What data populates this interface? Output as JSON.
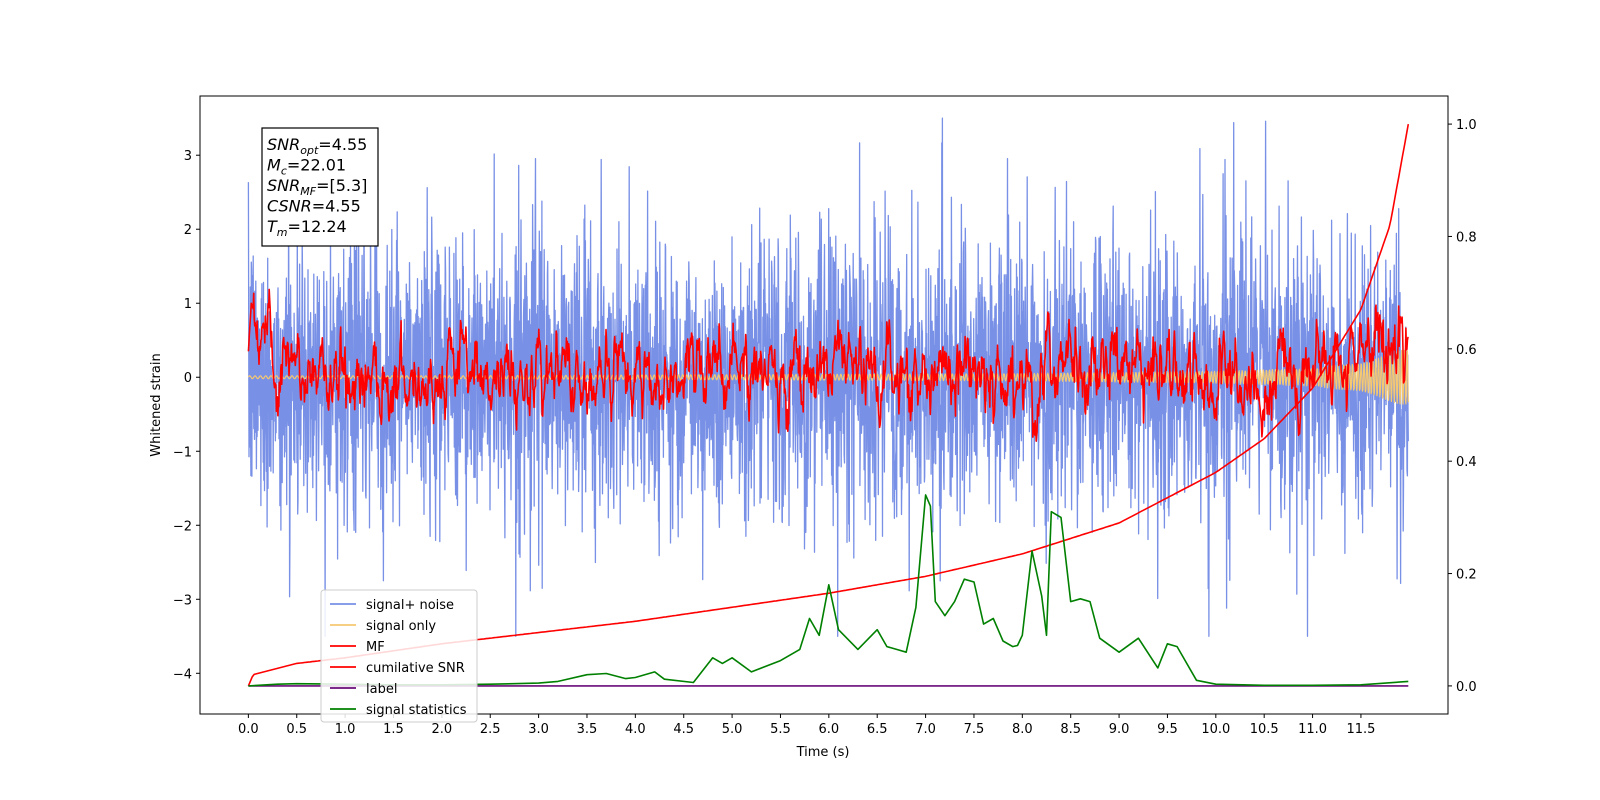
{
  "chart_data": {
    "type": "line",
    "title": "",
    "xlabel": "Time (s)",
    "ylabel": "Whitened strain",
    "xlim": [
      -0.5,
      12.4
    ],
    "ylim": [
      -4.55,
      3.8
    ],
    "y2lim": [
      -0.05,
      1.05
    ],
    "x_ticks": [
      0.0,
      0.5,
      1.0,
      1.5,
      2.0,
      2.5,
      3.0,
      3.5,
      4.0,
      4.5,
      5.0,
      5.5,
      6.0,
      6.5,
      7.0,
      7.5,
      8.0,
      8.5,
      9.0,
      9.5,
      10.0,
      10.5,
      11.0,
      11.5
    ],
    "x_tick_labels": [
      "0.0",
      "0.5",
      "1.0",
      "1.5",
      "2.0",
      "2.5",
      "3.0",
      "3.5",
      "4.0",
      "4.5",
      "5.0",
      "5.5",
      "6.0",
      "6.5",
      "7.0",
      "7.5",
      "8.0",
      "8.5",
      "9.0",
      "9.5",
      "10.0",
      "10.5",
      "11.0",
      "11.5"
    ],
    "y_ticks": [
      -4,
      -3,
      -2,
      -1,
      0,
      1,
      2,
      3
    ],
    "y_tick_labels": [
      "−4",
      "−3",
      "−2",
      "−1",
      "0",
      "1",
      "2",
      "3"
    ],
    "y2_ticks": [
      0.0,
      0.2,
      0.4,
      0.6,
      0.8,
      1.0
    ],
    "y2_tick_labels": [
      "0.0",
      "0.2",
      "0.4",
      "0.6",
      "0.8",
      "1.0"
    ],
    "grid": false,
    "legend_position": "lower-left",
    "x_range": [
      0.0,
      11.99
    ],
    "series": [
      {
        "name": "signal+ noise",
        "color": "#7890e6",
        "axis": "left",
        "kind": "noise",
        "amplitude": 0.95,
        "spike_max": 3.5
      },
      {
        "name": "signal only",
        "color": "#f5c872",
        "axis": "left",
        "kind": "chirp",
        "x": [
          0.0,
          2.0,
          4.0,
          6.0,
          8.0,
          10.0,
          11.0,
          11.5,
          11.99
        ],
        "envelope": [
          0.02,
          0.02,
          0.03,
          0.04,
          0.05,
          0.08,
          0.12,
          0.2,
          0.4
        ]
      },
      {
        "name": "MF",
        "color": "#ff0000",
        "axis": "left",
        "kind": "mf",
        "x": [
          0.0,
          0.03,
          0.3,
          1.0,
          3.0,
          5.0,
          7.0,
          9.0,
          11.0,
          11.99
        ],
        "y": [
          0.35,
          1.0,
          0.0,
          0.05,
          0.05,
          0.05,
          0.05,
          0.05,
          0.05,
          0.45
        ]
      },
      {
        "name": "cumilative SNR",
        "color": "#ff0000",
        "axis": "right",
        "x": [
          0.0,
          0.05,
          0.5,
          1.0,
          2.0,
          3.0,
          4.0,
          5.0,
          6.0,
          7.0,
          8.0,
          9.0,
          10.0,
          10.5,
          11.0,
          11.5,
          11.8,
          11.99
        ],
        "y": [
          0.0,
          0.02,
          0.04,
          0.05,
          0.075,
          0.095,
          0.115,
          0.14,
          0.165,
          0.195,
          0.235,
          0.29,
          0.38,
          0.44,
          0.53,
          0.67,
          0.82,
          1.0
        ]
      },
      {
        "name": "label",
        "color": "#6a0c7a",
        "axis": "right",
        "x": [
          0.0,
          11.99
        ],
        "y": [
          0.0,
          0.0
        ]
      },
      {
        "name": "signal statistics",
        "color": "#008000",
        "axis": "right",
        "x": [
          0.0,
          0.3,
          0.5,
          1.0,
          1.5,
          2.0,
          2.5,
          3.0,
          3.2,
          3.5,
          3.7,
          3.9,
          4.0,
          4.2,
          4.3,
          4.6,
          4.8,
          4.9,
          5.0,
          5.2,
          5.5,
          5.7,
          5.8,
          5.9,
          6.0,
          6.1,
          6.3,
          6.5,
          6.6,
          6.7,
          6.8,
          6.9,
          7.0,
          7.05,
          7.1,
          7.2,
          7.3,
          7.4,
          7.5,
          7.6,
          7.7,
          7.8,
          7.9,
          7.95,
          8.0,
          8.1,
          8.2,
          8.25,
          8.3,
          8.4,
          8.5,
          8.6,
          8.7,
          8.8,
          9.0,
          9.2,
          9.4,
          9.5,
          9.6,
          9.8,
          10.0,
          10.5,
          11.0,
          11.5,
          11.99
        ],
        "y": [
          0.0,
          0.003,
          0.004,
          0.003,
          0.002,
          0.002,
          0.003,
          0.005,
          0.008,
          0.02,
          0.022,
          0.013,
          0.015,
          0.025,
          0.012,
          0.006,
          0.05,
          0.04,
          0.05,
          0.025,
          0.045,
          0.065,
          0.12,
          0.09,
          0.18,
          0.1,
          0.065,
          0.1,
          0.07,
          0.065,
          0.06,
          0.14,
          0.34,
          0.32,
          0.15,
          0.125,
          0.15,
          0.19,
          0.185,
          0.11,
          0.12,
          0.08,
          0.07,
          0.072,
          0.09,
          0.24,
          0.16,
          0.09,
          0.31,
          0.3,
          0.15,
          0.155,
          0.15,
          0.085,
          0.06,
          0.085,
          0.032,
          0.075,
          0.07,
          0.01,
          0.003,
          0.001,
          0.001,
          0.002,
          0.008
        ]
      }
    ],
    "annotation_lines": [
      {
        "symbol": "SNR",
        "sub": "opt",
        "value": "=4.55"
      },
      {
        "symbol": "M",
        "sub": "c",
        "value": "=22.01"
      },
      {
        "symbol": "SNR",
        "sub": "MF",
        "value": "=[5.3]"
      },
      {
        "symbol": "CSNR",
        "sub": "",
        "value": "=4.55"
      },
      {
        "symbol": "T",
        "sub": "m",
        "value": "=12.24"
      }
    ]
  }
}
